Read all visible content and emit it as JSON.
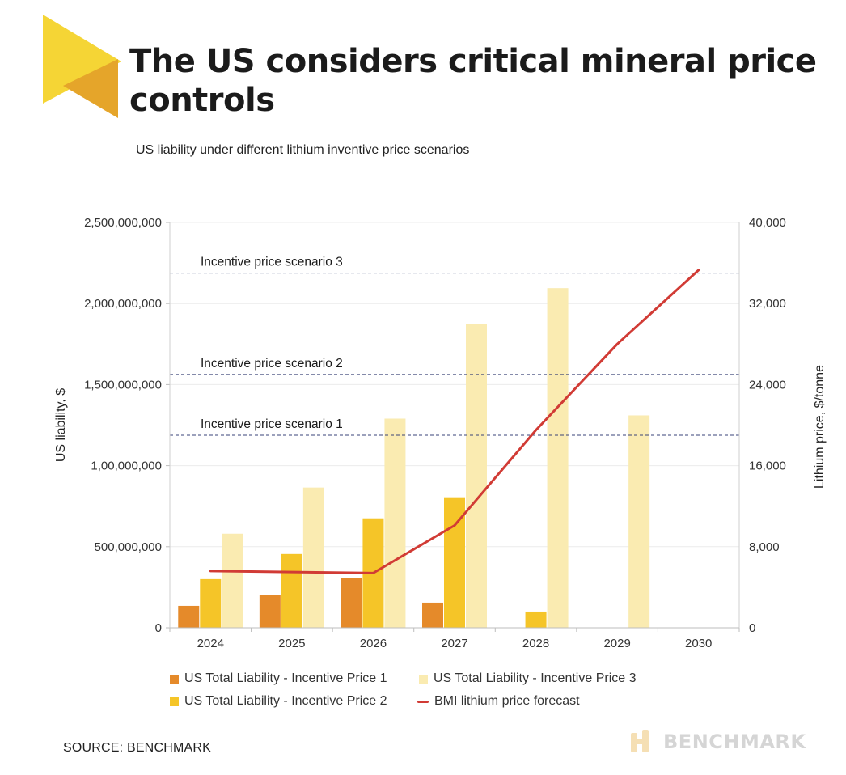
{
  "header": {
    "title": "The US considers critical mineral price controls",
    "subtitle": "US liability under different lithium inventive price scenarios"
  },
  "colors": {
    "price1": "#e58a2a",
    "price2": "#f5c528",
    "price3": "#faebb1",
    "forecast": "#d13b35",
    "reference": "#3a4378",
    "logo_yellow": "#f5d535",
    "logo_orange": "#e5a52a"
  },
  "chart_data": {
    "type": "bar",
    "categories": [
      "2024",
      "2025",
      "2026",
      "2027",
      "2028",
      "2029",
      "2030"
    ],
    "ylabel": "US liability, $",
    "ylabel_right": "Lithium price, $/tonne",
    "ylim": [
      0,
      2500000000
    ],
    "ylim_right": [
      0,
      40000
    ],
    "y_ticks": [
      "2,500,000,000",
      "2,000,000,000",
      "1,500,000,000",
      "1,00,000,000",
      "500,000,000",
      "0"
    ],
    "y_ticks_right": [
      "40,000",
      "32,000",
      "24,000",
      "16,000",
      "8,000",
      "0"
    ],
    "grid": true,
    "legend_position": "bottom",
    "series": [
      {
        "name": "US Total Liability - Incentive Price 1",
        "type": "bar",
        "values": [
          135000000,
          200000000,
          305000000,
          155000000,
          0,
          0,
          0
        ]
      },
      {
        "name": "US Total Liability - Incentive Price 2",
        "type": "bar",
        "values": [
          300000000,
          455000000,
          675000000,
          805000000,
          100000000,
          0,
          0
        ]
      },
      {
        "name": "US Total Liability - Incentive Price 3",
        "type": "bar",
        "values": [
          580000000,
          865000000,
          1290000000,
          1875000000,
          2095000000,
          1310000000,
          0
        ]
      },
      {
        "name": "BMI lithium price forecast",
        "type": "line",
        "axis": "right",
        "values": [
          5600,
          5500,
          5400,
          10100,
          19500,
          28000,
          35300
        ]
      }
    ],
    "reference_lines": [
      {
        "label": "Incentive price scenario 3",
        "value": 35000
      },
      {
        "label": "Incentive price scenario 2",
        "value": 25000
      },
      {
        "label": "Incentive price scenario 1",
        "value": 19000
      }
    ]
  },
  "footer": {
    "source": "SOURCE: BENCHMARK",
    "brand": "BENCHMARK"
  }
}
